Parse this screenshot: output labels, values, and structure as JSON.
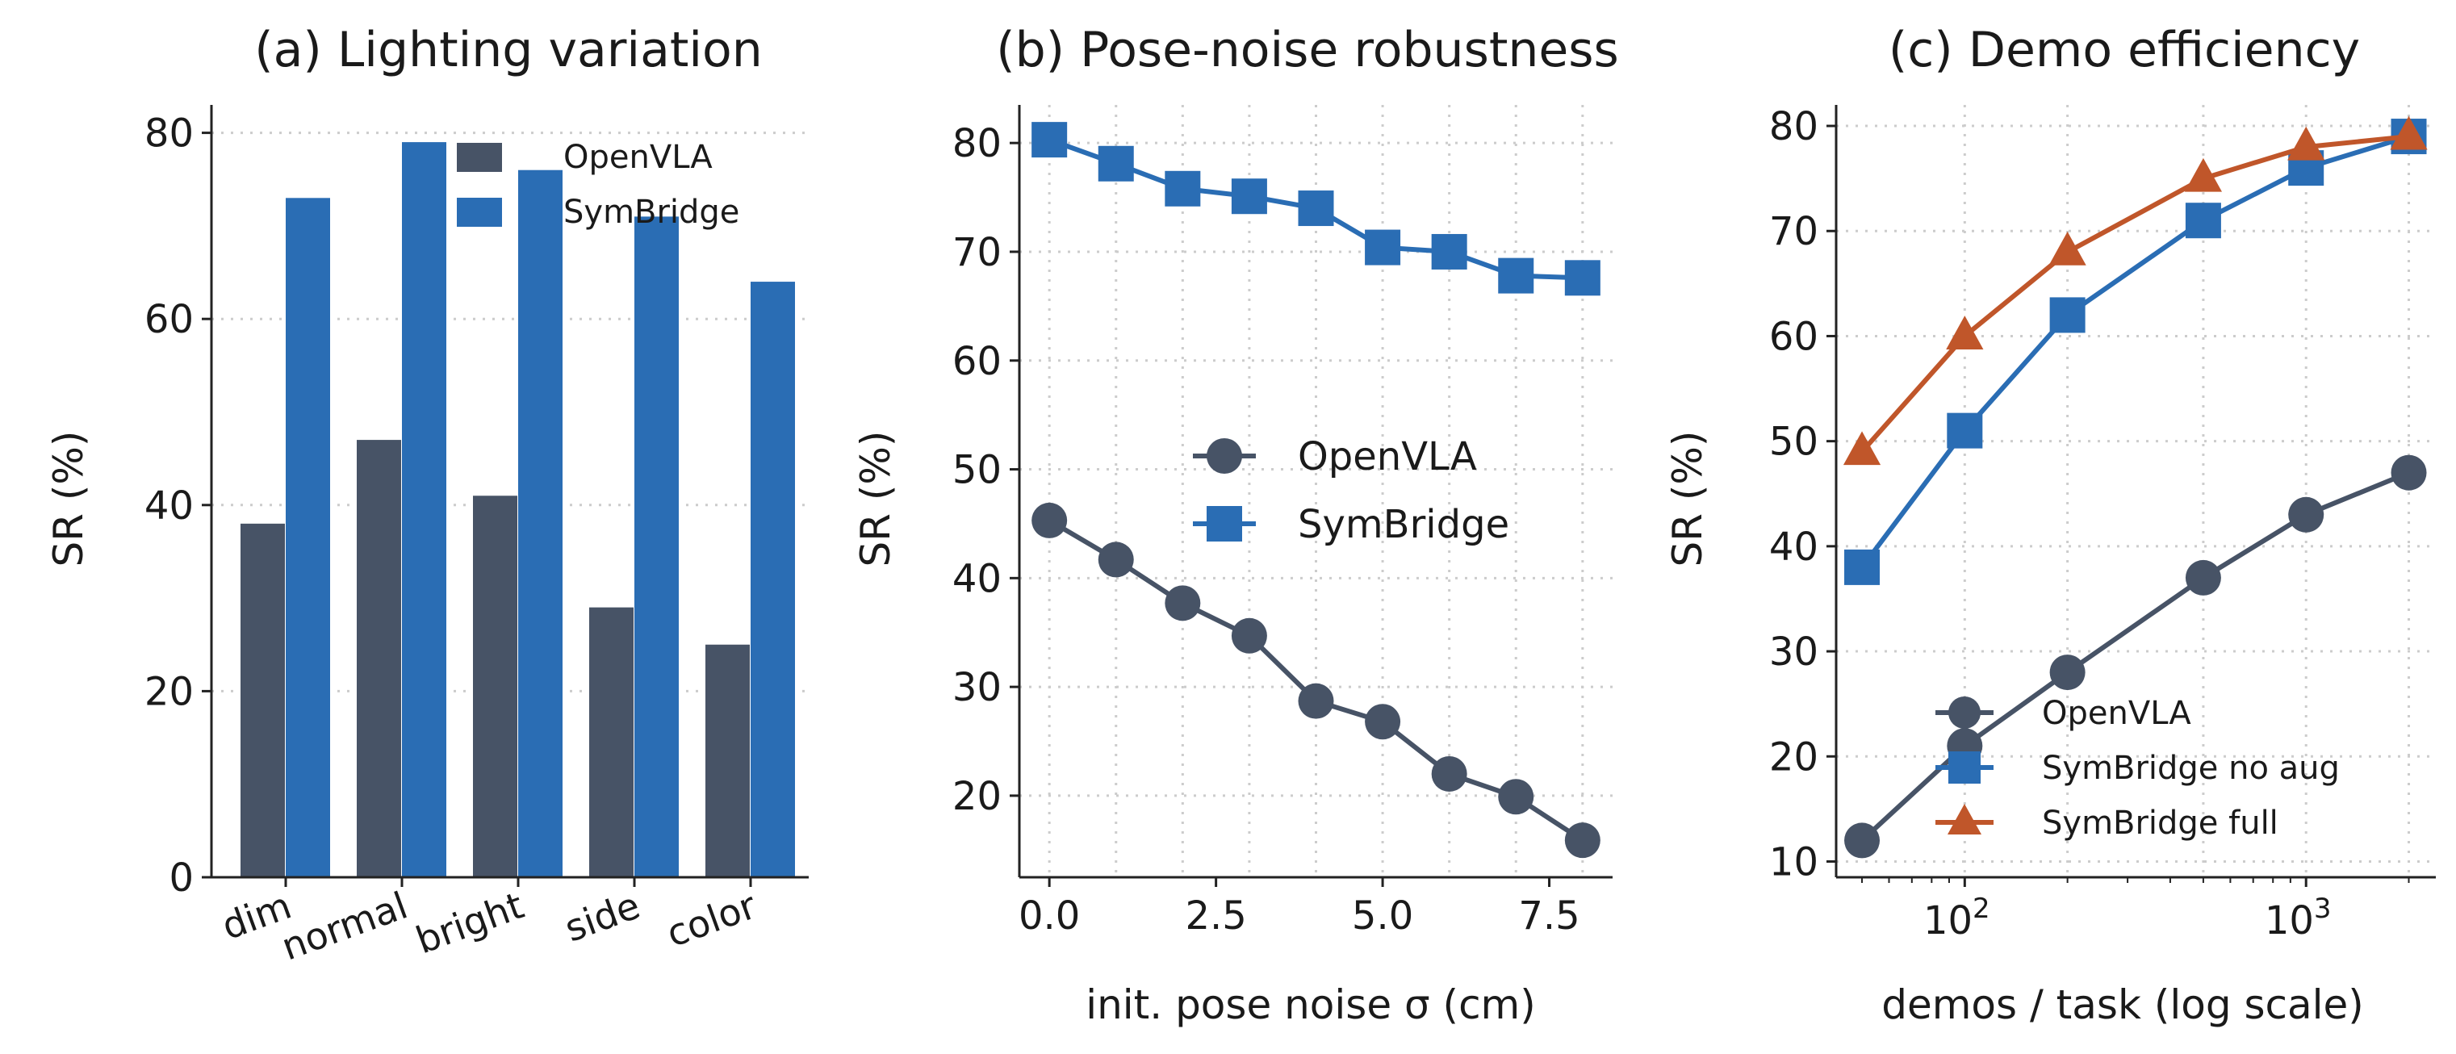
{
  "chart_data": [
    {
      "type": "bar",
      "title": "(a) Lighting variation",
      "xlabel": "",
      "ylabel": "SR (%)",
      "ylim": [
        0,
        83
      ],
      "yticks": [
        0,
        20,
        40,
        60,
        80
      ],
      "categories": [
        "dim",
        "normal",
        "bright",
        "side",
        "color"
      ],
      "series": [
        {
          "name": "OpenVLA",
          "color": "#475366",
          "values": [
            38,
            47,
            41,
            29,
            25
          ]
        },
        {
          "name": "SymBridge",
          "color": "#2a6db4",
          "values": [
            73,
            79,
            76,
            71,
            64
          ]
        }
      ],
      "grid": "y-dotted",
      "legend": "top-right"
    },
    {
      "type": "line",
      "title": "(b) Pose-noise robustness",
      "xlabel": "init. pose noise σ (cm)",
      "ylabel": "SR (%)",
      "xlim": [
        -0.45,
        8.45
      ],
      "ylim": [
        12.5,
        83.5
      ],
      "xticks": [
        0.0,
        2.5,
        5.0,
        7.5
      ],
      "xtick_labels": [
        "0.0",
        "2.5",
        "5.0",
        "7.5"
      ],
      "yticks": [
        20,
        30,
        40,
        50,
        60,
        70,
        80
      ],
      "x": [
        0,
        1,
        2,
        3,
        4,
        5,
        6,
        7,
        8
      ],
      "series": [
        {
          "name": "OpenVLA",
          "color": "#475366",
          "marker": "circle",
          "values": [
            45.3,
            41.7,
            37.7,
            34.7,
            28.7,
            26.8,
            22.0,
            19.9,
            15.9
          ]
        },
        {
          "name": "SymBridge",
          "color": "#2a6db4",
          "marker": "square",
          "values": [
            80.3,
            78.1,
            75.8,
            75.1,
            74.0,
            70.4,
            70.0,
            67.8,
            67.6
          ]
        }
      ],
      "grid": "both-dotted",
      "legend": "center-right"
    },
    {
      "type": "line",
      "title": "(c) Demo efficiency",
      "xlabel": "demos / task (log scale)",
      "ylabel": "SR (%)",
      "xscale": "log",
      "xlim": [
        42,
        2400
      ],
      "ylim": [
        8.5,
        82
      ],
      "xticks": [
        100,
        1000
      ],
      "yticks": [
        10,
        20,
        30,
        40,
        50,
        60,
        70,
        80
      ],
      "x": [
        50,
        100,
        200,
        500,
        1000,
        2000
      ],
      "series": [
        {
          "name": "OpenVLA",
          "color": "#475366",
          "marker": "circle",
          "values": [
            12,
            21,
            28,
            37,
            43,
            47
          ]
        },
        {
          "name": "SymBridge no aug",
          "color": "#2a6db4",
          "marker": "square",
          "values": [
            38,
            51,
            62,
            71,
            76,
            79
          ]
        },
        {
          "name": "SymBridge full",
          "color": "#c0562a",
          "marker": "triangle",
          "values": [
            49,
            60,
            68,
            75,
            78,
            79
          ]
        }
      ],
      "grid": "both-dotted",
      "legend": "bottom-right"
    }
  ]
}
